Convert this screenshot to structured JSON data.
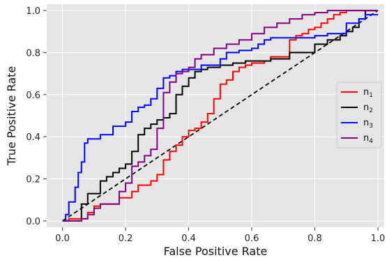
{
  "chart_data": {
    "type": "line",
    "title": "",
    "xlabel": "False Positive Rate",
    "ylabel": "True Positive Rate",
    "xlim": [
      -0.05,
      1.02
    ],
    "ylim": [
      -0.03,
      1.03
    ],
    "xticks": [
      0.0,
      0.2,
      0.4,
      0.6,
      0.8,
      1.0
    ],
    "xtick_labels": [
      "0.0",
      "0.2",
      "0.4",
      "0.6",
      "0.8",
      "1.0"
    ],
    "yticks": [
      0.0,
      0.2,
      0.4,
      0.6,
      0.8,
      1.0
    ],
    "ytick_labels": [
      "0.0",
      "0.2",
      "0.4",
      "0.6",
      "0.8",
      "1.0"
    ],
    "grid": true,
    "legend_position": "center-right",
    "background_color": "#e5e5e5",
    "diagonal": {
      "x": [
        0,
        1
      ],
      "y": [
        0,
        1
      ],
      "style": "dashed",
      "color": "#000000"
    },
    "series": [
      {
        "name": "n",
        "subscript": "1",
        "color": "#ff0000",
        "x": [
          0,
          0.02,
          0.02,
          0.08,
          0.08,
          0.1,
          0.1,
          0.12,
          0.12,
          0.18,
          0.18,
          0.22,
          0.22,
          0.24,
          0.24,
          0.28,
          0.28,
          0.3,
          0.3,
          0.32,
          0.32,
          0.34,
          0.34,
          0.36,
          0.36,
          0.38,
          0.38,
          0.4,
          0.4,
          0.42,
          0.42,
          0.44,
          0.44,
          0.46,
          0.46,
          0.48,
          0.48,
          0.5,
          0.5,
          0.52,
          0.52,
          0.54,
          0.54,
          0.56,
          0.56,
          0.58,
          0.58,
          0.6,
          0.6,
          0.64,
          0.64,
          0.66,
          0.66,
          0.72,
          0.72,
          0.74,
          0.74,
          0.76,
          0.76,
          0.78,
          0.78,
          0.8,
          0.8,
          0.82,
          0.82,
          0.84,
          0.84,
          0.86,
          0.86,
          0.88,
          0.88,
          0.9,
          0.9,
          0.96,
          0.96,
          1.0
        ],
        "y": [
          0,
          0,
          0.01,
          0.01,
          0.04,
          0.04,
          0.07,
          0.07,
          0.08,
          0.08,
          0.11,
          0.11,
          0.14,
          0.14,
          0.17,
          0.17,
          0.19,
          0.19,
          0.22,
          0.22,
          0.29,
          0.29,
          0.33,
          0.33,
          0.36,
          0.36,
          0.4,
          0.4,
          0.43,
          0.43,
          0.44,
          0.44,
          0.47,
          0.47,
          0.51,
          0.51,
          0.58,
          0.58,
          0.65,
          0.65,
          0.67,
          0.67,
          0.71,
          0.71,
          0.73,
          0.73,
          0.74,
          0.74,
          0.75,
          0.75,
          0.76,
          0.76,
          0.78,
          0.78,
          0.86,
          0.86,
          0.88,
          0.88,
          0.89,
          0.89,
          0.91,
          0.91,
          0.92,
          0.92,
          0.94,
          0.94,
          0.96,
          0.96,
          0.98,
          0.98,
          0.99,
          0.99,
          1.0,
          1.0,
          1.0,
          1.0
        ]
      },
      {
        "name": "n",
        "subscript": "2",
        "color": "#000000",
        "x": [
          0,
          0.06,
          0.06,
          0.08,
          0.08,
          0.12,
          0.12,
          0.14,
          0.14,
          0.16,
          0.16,
          0.18,
          0.18,
          0.2,
          0.2,
          0.22,
          0.22,
          0.24,
          0.24,
          0.26,
          0.26,
          0.28,
          0.28,
          0.3,
          0.3,
          0.32,
          0.32,
          0.34,
          0.34,
          0.36,
          0.36,
          0.38,
          0.38,
          0.4,
          0.4,
          0.42,
          0.42,
          0.44,
          0.44,
          0.46,
          0.46,
          0.5,
          0.5,
          0.54,
          0.54,
          0.58,
          0.58,
          0.66,
          0.66,
          0.72,
          0.72,
          0.8,
          0.8,
          0.84,
          0.84,
          0.88,
          0.88,
          0.9,
          0.9,
          0.92,
          0.92,
          0.94,
          0.94,
          0.96,
          0.96,
          1.0
        ],
        "y": [
          0,
          0,
          0.08,
          0.08,
          0.13,
          0.13,
          0.19,
          0.19,
          0.21,
          0.21,
          0.23,
          0.23,
          0.25,
          0.25,
          0.27,
          0.27,
          0.33,
          0.33,
          0.41,
          0.41,
          0.44,
          0.44,
          0.46,
          0.46,
          0.48,
          0.48,
          0.49,
          0.49,
          0.51,
          0.51,
          0.6,
          0.6,
          0.64,
          0.64,
          0.68,
          0.68,
          0.71,
          0.71,
          0.72,
          0.72,
          0.73,
          0.73,
          0.74,
          0.74,
          0.75,
          0.75,
          0.76,
          0.76,
          0.77,
          0.77,
          0.8,
          0.8,
          0.84,
          0.84,
          0.86,
          0.86,
          0.88,
          0.88,
          0.9,
          0.9,
          0.92,
          0.92,
          0.96,
          0.96,
          1.0,
          1.0
        ]
      },
      {
        "name": "n",
        "subscript": "3",
        "color": "#0000ff",
        "x": [
          0,
          0.01,
          0.01,
          0.02,
          0.02,
          0.04,
          0.04,
          0.05,
          0.05,
          0.06,
          0.06,
          0.07,
          0.07,
          0.08,
          0.08,
          0.12,
          0.12,
          0.16,
          0.16,
          0.2,
          0.2,
          0.22,
          0.22,
          0.24,
          0.24,
          0.26,
          0.26,
          0.28,
          0.28,
          0.3,
          0.3,
          0.32,
          0.32,
          0.34,
          0.34,
          0.36,
          0.36,
          0.38,
          0.38,
          0.44,
          0.44,
          0.5,
          0.5,
          0.52,
          0.52,
          0.56,
          0.56,
          0.6,
          0.6,
          0.62,
          0.62,
          0.64,
          0.64,
          0.66,
          0.66,
          0.72,
          0.72,
          0.8,
          0.8,
          0.84,
          0.84,
          0.9,
          0.9,
          0.94,
          0.94,
          0.96,
          0.96,
          1.0
        ],
        "y": [
          0,
          0,
          0.03,
          0.03,
          0.09,
          0.09,
          0.16,
          0.16,
          0.23,
          0.23,
          0.28,
          0.28,
          0.37,
          0.37,
          0.39,
          0.39,
          0.41,
          0.41,
          0.45,
          0.45,
          0.47,
          0.47,
          0.52,
          0.52,
          0.54,
          0.54,
          0.55,
          0.55,
          0.58,
          0.58,
          0.63,
          0.63,
          0.68,
          0.68,
          0.69,
          0.69,
          0.71,
          0.71,
          0.72,
          0.72,
          0.74,
          0.74,
          0.77,
          0.77,
          0.8,
          0.8,
          0.81,
          0.81,
          0.82,
          0.82,
          0.84,
          0.84,
          0.86,
          0.86,
          0.87,
          0.87,
          0.87,
          0.87,
          0.88,
          0.88,
          0.89,
          0.89,
          0.94,
          0.94,
          0.96,
          0.96,
          0.98,
          0.98
        ]
      },
      {
        "name": "n",
        "subscript": "4",
        "color": "#800080",
        "x": [
          0,
          0.06,
          0.06,
          0.08,
          0.08,
          0.1,
          0.1,
          0.12,
          0.12,
          0.18,
          0.18,
          0.2,
          0.2,
          0.22,
          0.22,
          0.24,
          0.24,
          0.26,
          0.26,
          0.28,
          0.28,
          0.3,
          0.3,
          0.32,
          0.32,
          0.34,
          0.34,
          0.36,
          0.36,
          0.38,
          0.38,
          0.4,
          0.4,
          0.42,
          0.42,
          0.44,
          0.44,
          0.48,
          0.48,
          0.52,
          0.52,
          0.56,
          0.56,
          0.6,
          0.6,
          0.64,
          0.64,
          0.68,
          0.68,
          0.72,
          0.72,
          0.76,
          0.76,
          0.8,
          0.8,
          0.84,
          0.84,
          0.88,
          0.88,
          0.92,
          0.92,
          1.0
        ],
        "y": [
          0,
          0,
          0.01,
          0.01,
          0.03,
          0.03,
          0.06,
          0.06,
          0.08,
          0.08,
          0.14,
          0.14,
          0.18,
          0.18,
          0.26,
          0.26,
          0.28,
          0.28,
          0.31,
          0.31,
          0.34,
          0.34,
          0.44,
          0.44,
          0.61,
          0.61,
          0.66,
          0.66,
          0.7,
          0.7,
          0.71,
          0.71,
          0.73,
          0.73,
          0.77,
          0.77,
          0.79,
          0.79,
          0.82,
          0.82,
          0.84,
          0.84,
          0.86,
          0.86,
          0.89,
          0.89,
          0.92,
          0.92,
          0.94,
          0.94,
          0.96,
          0.96,
          0.98,
          0.98,
          0.99,
          0.99,
          1.0,
          1.0,
          1.0,
          1.0,
          1.0,
          1.0
        ]
      }
    ]
  }
}
